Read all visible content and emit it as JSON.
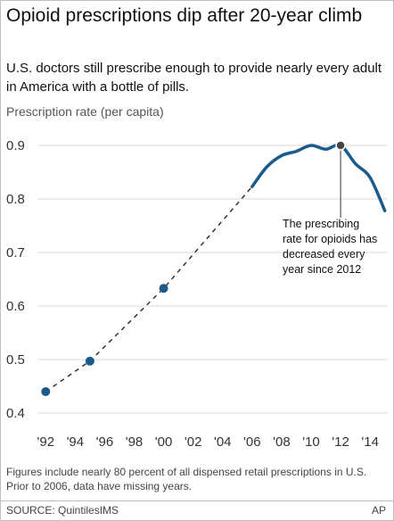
{
  "header": {
    "title": "Opioid prescriptions dip after 20-year climb",
    "subtitle": "U.S. doctors still prescribe enough to provide nearly every adult in America with a bottle of pills."
  },
  "footer": {
    "note": "Figures include nearly 80 percent of all dispensed retail prescriptions in U.S. Prior to 2006, data have missing years.",
    "source": "SOURCE: QuintilesIMS",
    "credit": "AP"
  },
  "colors": {
    "line": "#1b5a8a",
    "dashed": "#333333",
    "point": "#1b5a8a",
    "highlight_point": "#444444",
    "grid": "#d9d9d9"
  },
  "chart_data": {
    "type": "line",
    "title": "Opioid prescriptions dip after 20-year climb",
    "ylabel": "Prescription rate (per capita)",
    "xlabel": "",
    "xlim": [
      1991.5,
      2015.2
    ],
    "ylim": [
      0.4,
      0.9
    ],
    "x_ticks": [
      1992,
      1994,
      1996,
      1998,
      2000,
      2002,
      2004,
      2006,
      2008,
      2010,
      2012,
      2014
    ],
    "x_tick_labels": [
      "'92",
      "'94",
      "'96",
      "'98",
      "'00",
      "'02",
      "'04",
      "'06",
      "'08",
      "'10",
      "'12",
      "'14"
    ],
    "y_ticks": [
      0.4,
      0.5,
      0.6,
      0.7,
      0.8,
      0.9
    ],
    "y_tick_labels": [
      "0.4",
      "0.5",
      "0.6",
      "0.7",
      "0.8",
      "0.9"
    ],
    "grid": true,
    "legend": "none",
    "estimated_points": {
      "x": [
        1992,
        1995,
        2000
      ],
      "y": [
        0.44,
        0.497,
        0.633
      ]
    },
    "continuous_series": {
      "x": [
        2006,
        2007,
        2008,
        2009,
        2010,
        2011,
        2012,
        2013,
        2014,
        2015
      ],
      "y": [
        0.823,
        0.86,
        0.881,
        0.889,
        0.9,
        0.893,
        0.9,
        0.866,
        0.84,
        0.778
      ]
    },
    "annotation": {
      "x": 2012,
      "y": 0.9,
      "text": "The prescribing rate for opioids has decreased every year since 2012"
    }
  }
}
